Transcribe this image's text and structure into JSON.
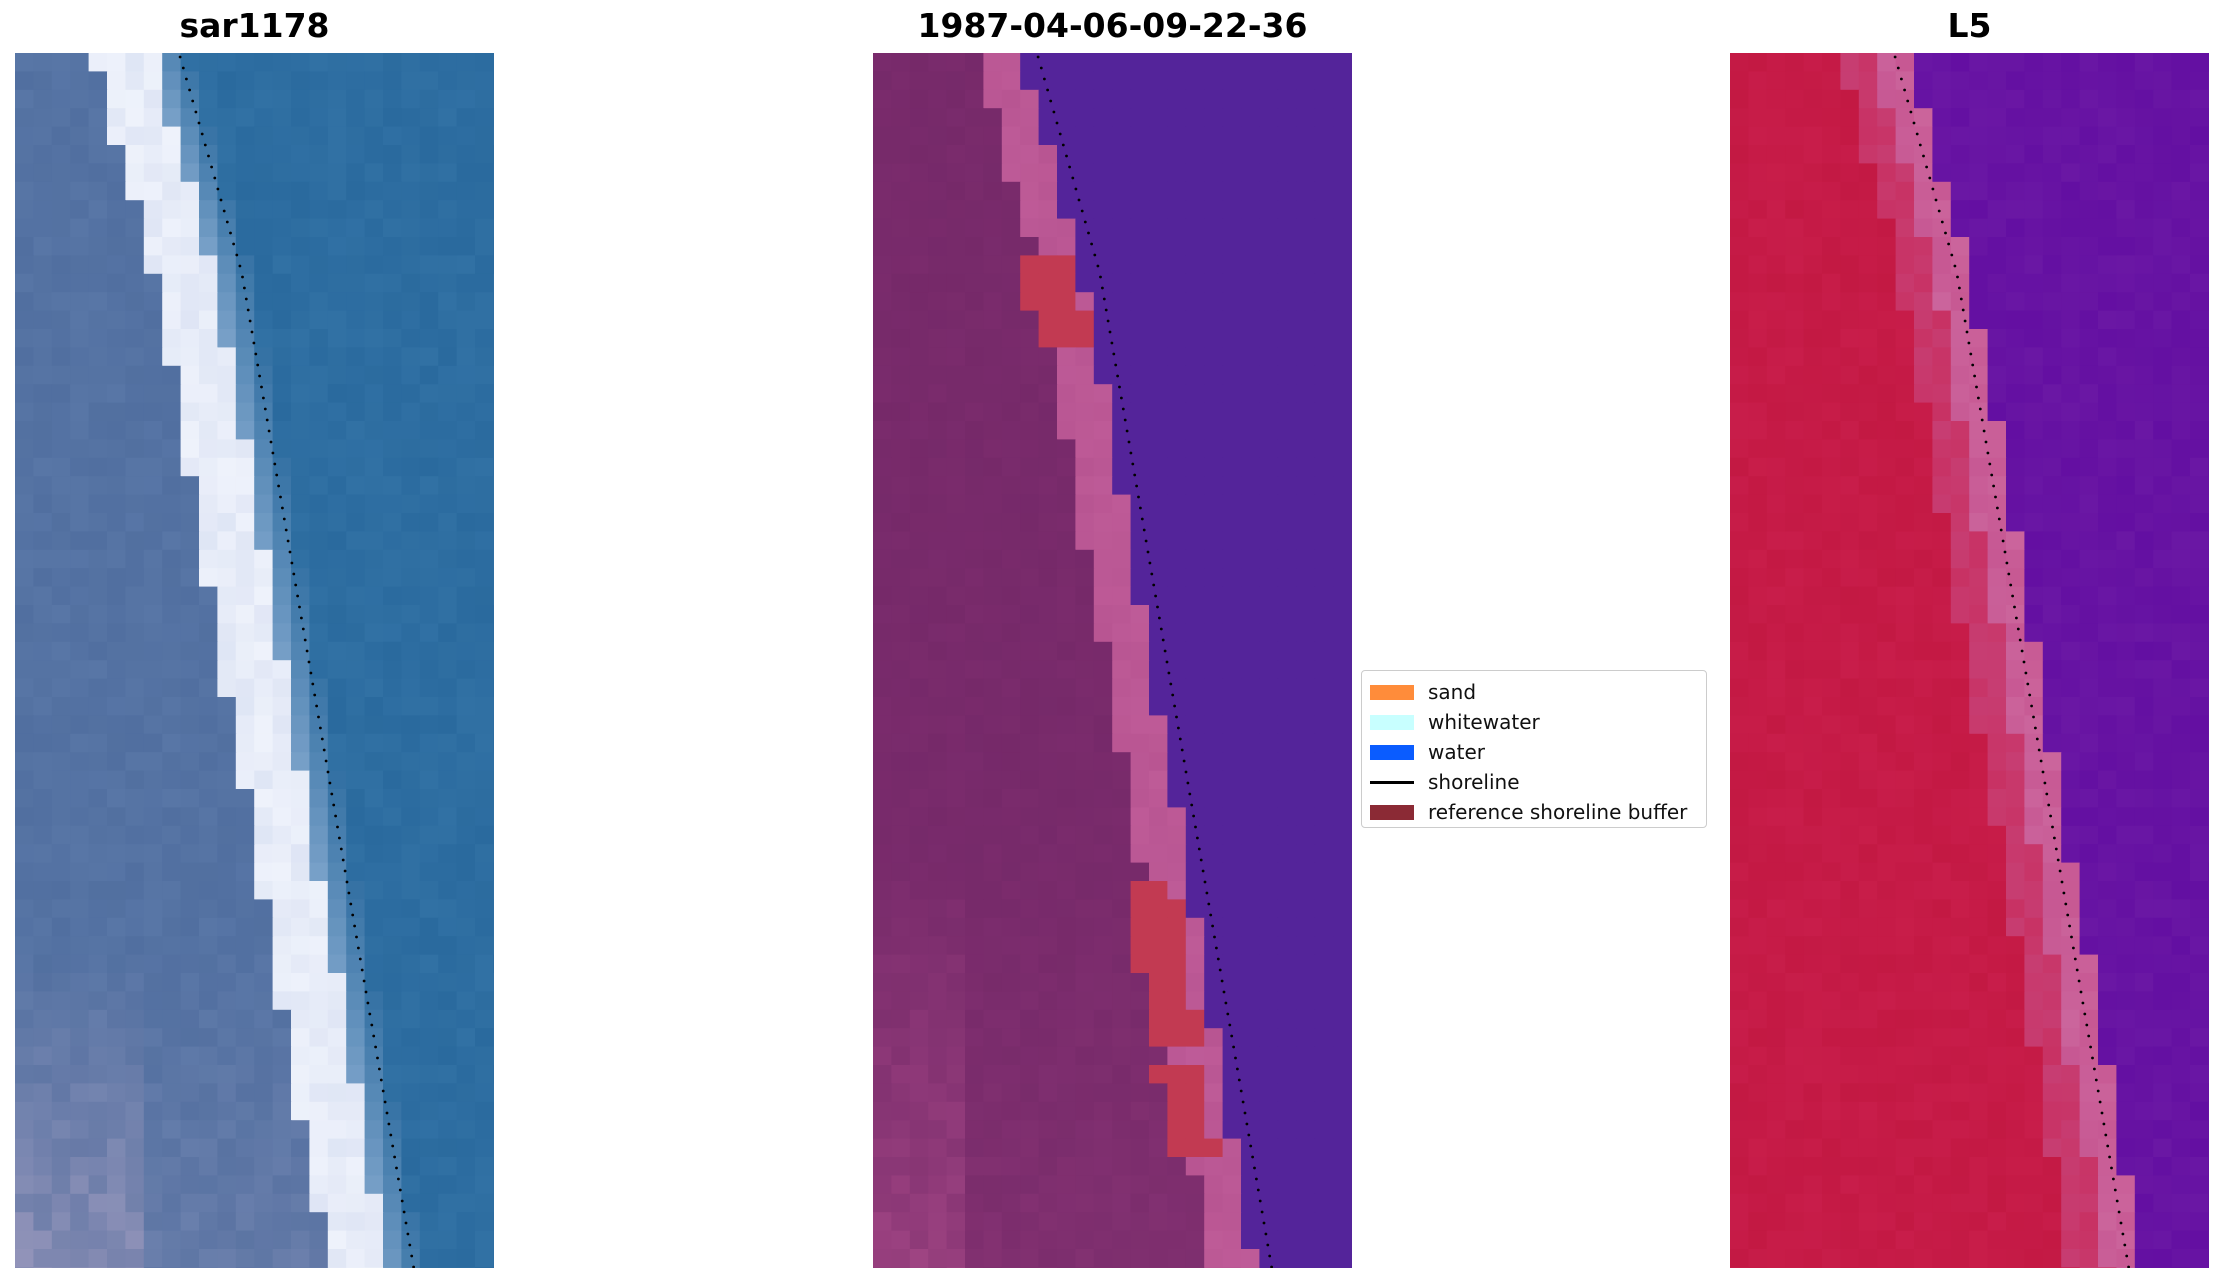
{
  "panels": [
    {
      "title": "sar1178",
      "palette": "rgb"
    },
    {
      "title": "1987-04-06-09-22-36",
      "palette": "classified"
    },
    {
      "title": "L5",
      "palette": "nir"
    }
  ],
  "legend": {
    "items": [
      {
        "label": "sand",
        "color": "#ff8c3a",
        "kind": "patch"
      },
      {
        "label": "whitewater",
        "color": "#c8ffff",
        "kind": "patch"
      },
      {
        "label": "water",
        "color": "#0a5cff",
        "kind": "patch"
      },
      {
        "label": "shoreline",
        "color": "#000000",
        "kind": "line"
      },
      {
        "label": "reference shoreline buffer",
        "color": "#8b2a35",
        "kind": "patch"
      }
    ]
  },
  "colors": {
    "water_rgb": "#2a6a9e",
    "land_rgb": "#5a78a6",
    "whitewater_rgb": "#eef2fb",
    "classified_land": "#7a2b6c",
    "classified_sand_blend": "#b85592",
    "classified_water": "#54249a",
    "classified_buffer": "#c23a52",
    "nir_land": "#c81d4a",
    "nir_mid": "#c75893",
    "nir_water": "#6a17a4"
  }
}
